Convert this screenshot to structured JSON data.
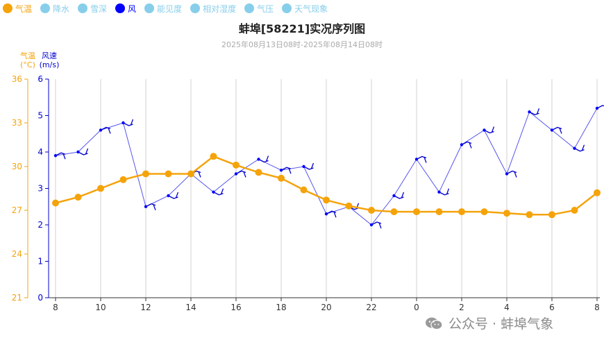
{
  "legend": [
    {
      "label": "气温",
      "color": "#F5A30B",
      "text_color": "#F5A30B"
    },
    {
      "label": "降水",
      "color": "#87CEEB",
      "text_color": "#87CEEB"
    },
    {
      "label": "雪深",
      "color": "#87CEEB",
      "text_color": "#87CEEB"
    },
    {
      "label": "风",
      "color": "#0000FF",
      "text_color": "#0000FF"
    },
    {
      "label": "能见度",
      "color": "#87CEEB",
      "text_color": "#87CEEB"
    },
    {
      "label": "相对湿度",
      "color": "#87CEEB",
      "text_color": "#87CEEB"
    },
    {
      "label": "气压",
      "color": "#87CEEB",
      "text_color": "#87CEEB"
    },
    {
      "label": "天气现象",
      "color": "#87CEEB",
      "text_color": "#87CEEB"
    }
  ],
  "watermark": "公众号 · 蚌埠气象",
  "chart_data": {
    "type": "line",
    "title": "蚌埠[58221]实况序列图",
    "subtitle": "2025年08月13日08时-2025年08月14日08时",
    "x_tick_labels": [
      "8",
      "10",
      "12",
      "14",
      "16",
      "18",
      "20",
      "22",
      "0",
      "2",
      "4",
      "6",
      "8"
    ],
    "x": [
      "8",
      "9",
      "10",
      "11",
      "12",
      "13",
      "14",
      "15",
      "16",
      "17",
      "18",
      "19",
      "20",
      "21",
      "22",
      "23",
      "0",
      "1",
      "2",
      "3",
      "4",
      "5",
      "6",
      "7",
      "8"
    ],
    "y_left": {
      "label": "气温",
      "unit": "(°C)",
      "range": [
        21,
        36
      ],
      "ticks": [
        21,
        24,
        27,
        30,
        33,
        36
      ],
      "color": "#F5A30B"
    },
    "y_right": {
      "label": "风速",
      "unit": "(m/s)",
      "range": [
        0,
        6
      ],
      "ticks": [
        0,
        1,
        2,
        3,
        4,
        5,
        6
      ],
      "color": "#0000CC"
    },
    "grid": "vertical",
    "series": [
      {
        "name": "气温",
        "axis": "left",
        "color": "#F5A30B",
        "values": [
          27.5,
          27.9,
          28.5,
          29.1,
          29.5,
          29.5,
          29.5,
          30.7,
          30.1,
          29.6,
          29.2,
          28.4,
          27.7,
          27.3,
          27.0,
          26.9,
          26.9,
          26.9,
          26.9,
          26.9,
          26.8,
          26.7,
          26.7,
          27.0,
          28.2
        ]
      },
      {
        "name": "风",
        "axis": "right",
        "color": "#0000FF",
        "values": [
          3.9,
          4.0,
          4.6,
          4.8,
          2.5,
          2.8,
          3.4,
          2.9,
          3.4,
          3.8,
          3.5,
          3.6,
          2.3,
          2.5,
          2.0,
          2.8,
          3.8,
          2.9,
          4.2,
          4.6,
          3.4,
          5.1,
          4.6,
          4.1,
          5.2
        ]
      }
    ]
  }
}
